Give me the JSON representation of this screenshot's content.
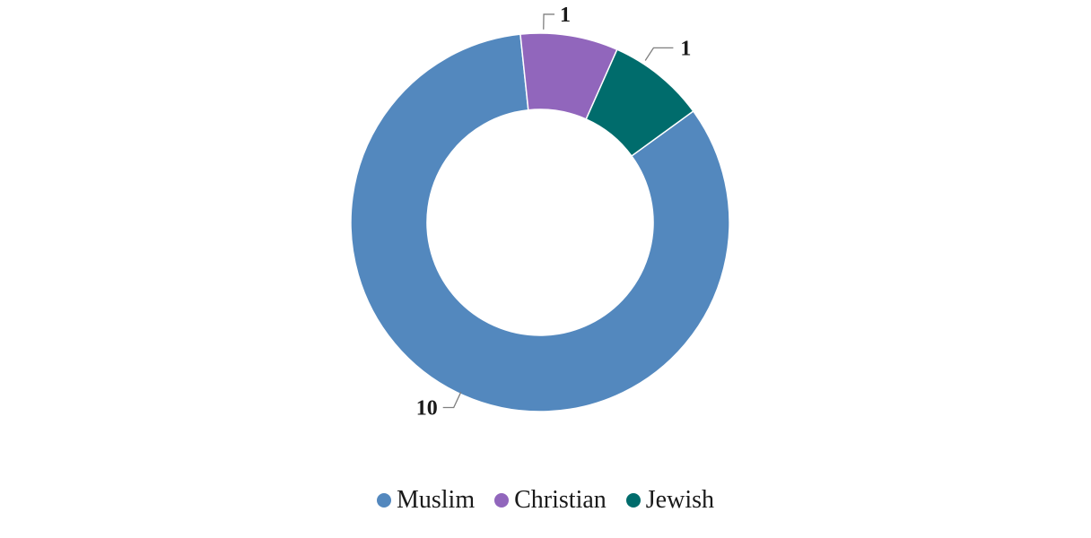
{
  "chart_data": {
    "type": "pie",
    "variant": "donut",
    "categories": [
      "Muslim",
      "Christian",
      "Jewish"
    ],
    "values": [
      10,
      1,
      1
    ],
    "colors": [
      "#5388BE",
      "#9166BC",
      "#006C6C"
    ],
    "data_labels": [
      "10",
      "1",
      "1"
    ],
    "legend_position": "bottom",
    "start_direction": "clockwise-from-top"
  }
}
